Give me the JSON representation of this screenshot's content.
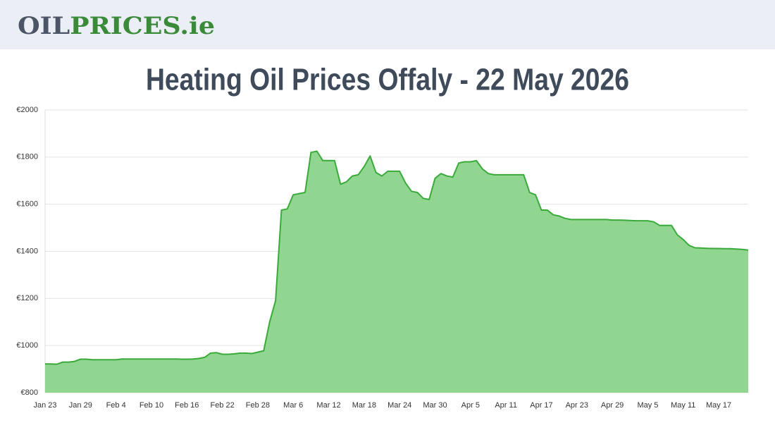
{
  "header": {
    "logo": [
      "OIL",
      "PRICES",
      ".ie"
    ]
  },
  "chart_data": {
    "type": "area",
    "title": "Heating Oil Prices Offaly - 22 May 2026",
    "categories": [
      "Jan 23",
      null,
      null,
      null,
      null,
      null,
      "Jan 29",
      null,
      null,
      null,
      null,
      null,
      "Feb 4",
      null,
      null,
      null,
      null,
      null,
      "Feb 10",
      null,
      null,
      null,
      null,
      null,
      "Feb 16",
      null,
      null,
      null,
      null,
      null,
      "Feb 22",
      null,
      null,
      null,
      null,
      null,
      "Feb 28",
      null,
      null,
      null,
      null,
      null,
      "Mar 6",
      null,
      null,
      null,
      null,
      null,
      "Mar 12",
      null,
      null,
      null,
      null,
      null,
      "Mar 18",
      null,
      null,
      null,
      null,
      null,
      "Mar 24",
      null,
      null,
      null,
      null,
      null,
      "Mar 30",
      null,
      null,
      null,
      null,
      null,
      "Apr 5",
      null,
      null,
      null,
      null,
      null,
      "Apr 11",
      null,
      null,
      null,
      null,
      null,
      "Apr 17",
      null,
      null,
      null,
      null,
      null,
      "Apr 23",
      null,
      null,
      null,
      null,
      null,
      "Apr 29",
      null,
      null,
      null,
      null,
      null,
      "May 5",
      null,
      null,
      null,
      null,
      null,
      "May 11",
      null,
      null,
      null,
      null,
      null,
      "May 17",
      null,
      null,
      null,
      null,
      null
    ],
    "values": [
      922,
      922,
      921,
      930,
      930,
      933,
      942,
      942,
      940,
      940,
      940,
      940,
      940,
      943,
      943,
      943,
      943,
      943,
      943,
      943,
      943,
      943,
      943,
      942,
      942,
      943,
      945,
      950,
      968,
      970,
      963,
      963,
      965,
      968,
      968,
      966,
      972,
      978,
      1100,
      1190,
      1575,
      1580,
      1640,
      1645,
      1650,
      1820,
      1825,
      1785,
      1785,
      1785,
      1685,
      1695,
      1720,
      1725,
      1760,
      1805,
      1735,
      1720,
      1740,
      1740,
      1740,
      1690,
      1655,
      1650,
      1625,
      1620,
      1710,
      1730,
      1720,
      1715,
      1775,
      1780,
      1780,
      1785,
      1750,
      1730,
      1725,
      1725,
      1725,
      1725,
      1725,
      1725,
      1650,
      1640,
      1575,
      1575,
      1555,
      1550,
      1540,
      1535,
      1535,
      1535,
      1535,
      1535,
      1535,
      1535,
      1533,
      1533,
      1532,
      1531,
      1530,
      1530,
      1530,
      1525,
      1510,
      1510,
      1510,
      1470,
      1450,
      1425,
      1415,
      1414,
      1413,
      1412,
      1412,
      1411,
      1411,
      1410,
      1408,
      1405
    ],
    "color": "#3aaa3a",
    "fill": "#90d690",
    "ylim": [
      800,
      2000
    ],
    "yticks": [
      {
        "value": 800,
        "label": "€800"
      },
      {
        "value": 1000,
        "label": "€1000"
      },
      {
        "value": 1200,
        "label": "€1200"
      },
      {
        "value": 1400,
        "label": "€1400"
      },
      {
        "value": 1600,
        "label": "€1600"
      },
      {
        "value": 1800,
        "label": "€1800"
      },
      {
        "value": 2000,
        "label": "€2000"
      }
    ],
    "grid": true
  }
}
